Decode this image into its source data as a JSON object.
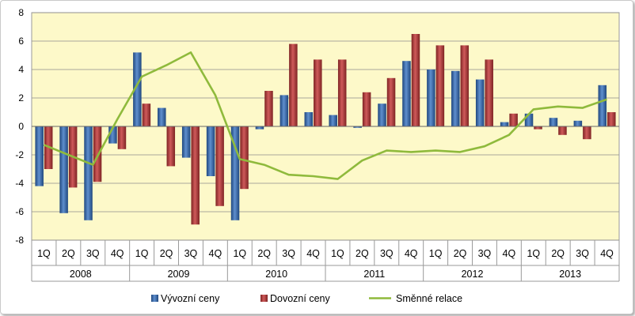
{
  "chart_data": {
    "type": "bar",
    "ylim": [
      -8,
      8
    ],
    "yticks": [
      "8",
      "6",
      "4",
      "2",
      "0",
      "-2",
      "-4",
      "-6",
      "-8"
    ],
    "quarters": [
      "1Q",
      "2Q",
      "3Q",
      "4Q",
      "1Q",
      "2Q",
      "3Q",
      "4Q",
      "1Q",
      "2Q",
      "3Q",
      "4Q",
      "1Q",
      "2Q",
      "3Q",
      "4Q",
      "1Q",
      "2Q",
      "3Q",
      "4Q",
      "1Q",
      "2Q",
      "3Q",
      "4Q"
    ],
    "years": [
      "2008",
      "2009",
      "2010",
      "2011",
      "2012",
      "2013"
    ],
    "series": [
      {
        "name": "Vývozní ceny",
        "type": "bar",
        "color": "#2f5f9e",
        "values": [
          -4.2,
          -6.1,
          -6.6,
          -1.2,
          5.2,
          1.3,
          -2.2,
          -3.5,
          -6.6,
          -0.2,
          2.2,
          1.0,
          0.8,
          -0.1,
          1.6,
          4.6,
          4.0,
          3.9,
          3.3,
          0.3,
          0.9,
          0.6,
          0.4,
          2.9
        ]
      },
      {
        "name": "Dovozní ceny",
        "type": "bar",
        "color": "#b03a3a",
        "values": [
          -3.0,
          -4.3,
          -3.9,
          -1.6,
          1.6,
          -2.8,
          -6.9,
          -5.6,
          -4.4,
          2.5,
          5.8,
          4.7,
          4.7,
          2.4,
          3.4,
          6.5,
          5.7,
          5.7,
          4.7,
          0.9,
          -0.2,
          -0.6,
          -0.9,
          1.0
        ]
      },
      {
        "name": "Směnné relace",
        "type": "line",
        "color": "#8fba3c",
        "values": [
          -1.3,
          -2.0,
          -2.7,
          0.5,
          3.5,
          4.3,
          5.2,
          2.2,
          -2.3,
          -2.7,
          -3.4,
          -3.5,
          -3.7,
          -2.4,
          -1.7,
          -1.8,
          -1.7,
          -1.8,
          -1.4,
          -0.6,
          1.2,
          1.4,
          1.3,
          1.9
        ]
      }
    ],
    "plot_bg": "#fdf9c9",
    "grid": true,
    "legend_position": "bottom"
  }
}
